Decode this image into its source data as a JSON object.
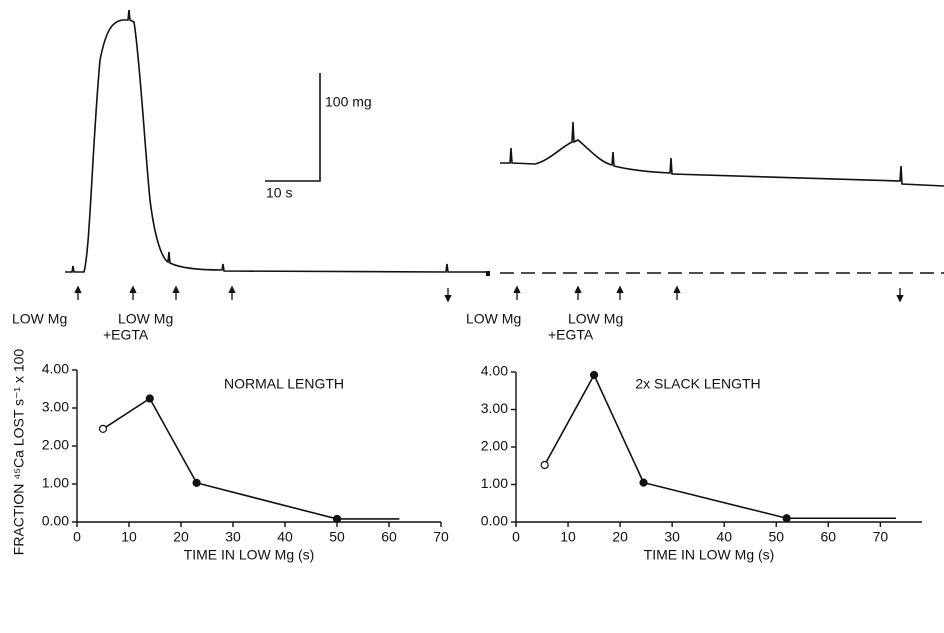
{
  "traces": {
    "scale_force": "100 mg",
    "scale_time": "10 s",
    "left_labels": [
      "LOW Mg",
      "LOW Mg",
      "+EGTA"
    ],
    "right_labels": [
      "LOW Mg",
      "LOW Mg",
      "+EGTA"
    ]
  },
  "chart_data": [
    {
      "type": "line",
      "title": "NORMAL LENGTH",
      "y_label": "FRACTION ⁴⁵Ca LOST s⁻¹ x 100",
      "x_label": "TIME IN LOW Mg (s)",
      "x": [
        5,
        14,
        23,
        50,
        62
      ],
      "values": [
        2.45,
        3.25,
        1.03,
        0.08,
        0.08
      ],
      "markers": [
        "open",
        "filled",
        "filled",
        "filled",
        "none"
      ],
      "color": "#111111",
      "xlim": [
        0,
        70
      ],
      "xticks": [
        0,
        10,
        20,
        30,
        40,
        50,
        60,
        70
      ],
      "ylim": [
        0,
        4
      ],
      "yticks": [
        {
          "value": 0,
          "label": "0.00"
        },
        {
          "value": 1,
          "label": "1.00"
        },
        {
          "value": 2,
          "label": "2.00"
        },
        {
          "value": 3,
          "label": "3.00"
        },
        {
          "value": 4,
          "label": "4.00"
        }
      ]
    },
    {
      "type": "line",
      "title": "2x SLACK LENGTH",
      "x_label": "TIME IN LOW Mg (s)",
      "x": [
        5.5,
        15,
        24.5,
        52,
        73
      ],
      "values": [
        1.52,
        3.92,
        1.05,
        0.1,
        0.1
      ],
      "markers": [
        "open",
        "filled",
        "filled",
        "filled",
        "none"
      ],
      "color": "#111111",
      "xlim": [
        0,
        78
      ],
      "xticks": [
        0,
        10,
        20,
        30,
        40,
        50,
        60,
        70
      ],
      "ylim": [
        0,
        4
      ],
      "yticks": [
        {
          "value": 0,
          "label": "0.00"
        },
        {
          "value": 1,
          "label": "1.00"
        },
        {
          "value": 2,
          "label": "2.00"
        },
        {
          "value": 3,
          "label": "3.00"
        },
        {
          "value": 4,
          "label": "4.00"
        }
      ]
    }
  ]
}
